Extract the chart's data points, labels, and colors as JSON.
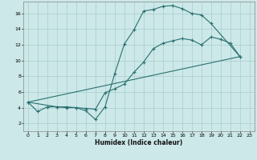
{
  "title": "",
  "xlabel": "Humidex (Indice chaleur)",
  "xlim": [
    -0.5,
    23.5
  ],
  "ylim": [
    1,
    17.5
  ],
  "yticks": [
    2,
    4,
    6,
    8,
    10,
    12,
    14,
    16
  ],
  "xticks": [
    0,
    1,
    2,
    3,
    4,
    5,
    6,
    7,
    8,
    9,
    10,
    11,
    12,
    13,
    14,
    15,
    16,
    17,
    18,
    19,
    20,
    21,
    22,
    23
  ],
  "bg_color": "#cce8e8",
  "grid_color": "#aacccc",
  "line_color": "#2a7070",
  "curve1_x": [
    0,
    1,
    2,
    3,
    4,
    5,
    6,
    7,
    8,
    9,
    10,
    11,
    12,
    13,
    14,
    15,
    16,
    17,
    18,
    19,
    22
  ],
  "curve1_y": [
    4.7,
    3.5,
    4.1,
    4.1,
    4.1,
    4.0,
    3.6,
    2.5,
    4.1,
    8.3,
    12.1,
    13.9,
    16.3,
    16.5,
    16.9,
    17.0,
    16.6,
    16.0,
    15.8,
    14.7,
    10.5
  ],
  "curve2_x": [
    0,
    3,
    4,
    5,
    6,
    7,
    8,
    9,
    10,
    11,
    12,
    13,
    14,
    15,
    16,
    17,
    18,
    19,
    20,
    21,
    22
  ],
  "curve2_y": [
    4.7,
    4.1,
    4.0,
    4.0,
    3.9,
    3.8,
    5.9,
    6.4,
    7.0,
    8.5,
    9.8,
    11.5,
    12.2,
    12.5,
    12.8,
    12.6,
    12.0,
    13.0,
    12.7,
    12.2,
    10.5
  ],
  "curve3_x": [
    0,
    22
  ],
  "curve3_y": [
    4.7,
    10.5
  ]
}
